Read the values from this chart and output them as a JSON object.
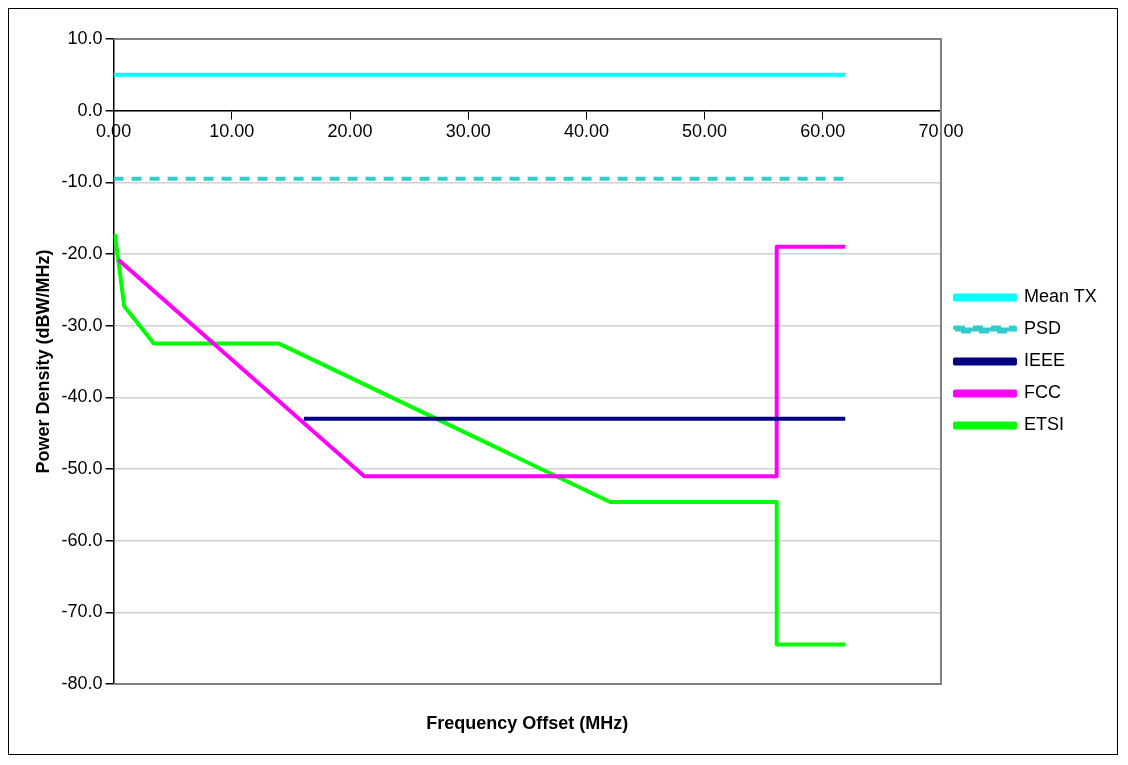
{
  "chart_data": {
    "type": "line",
    "xlabel": "Frequency Offset (MHz)",
    "ylabel": "Power Density (dBW/MHz)",
    "xlim": [
      0,
      70
    ],
    "xticks": [
      {
        "value": 0,
        "label": "0.00"
      },
      {
        "value": 10,
        "label": "10.00"
      },
      {
        "value": 20,
        "label": "20.00"
      },
      {
        "value": 30,
        "label": "30.00"
      },
      {
        "value": 40,
        "label": "40.00"
      },
      {
        "value": 50,
        "label": "50.00"
      },
      {
        "value": 60,
        "label": "60.00"
      },
      {
        "value": 70,
        "label": "70.00"
      }
    ],
    "ylim": [
      -80,
      10
    ],
    "yticks": [
      {
        "value": -80,
        "label": "-80.0"
      },
      {
        "value": -70,
        "label": "-70.0"
      },
      {
        "value": -60,
        "label": "-60.0"
      },
      {
        "value": -50,
        "label": "-50.0"
      },
      {
        "value": -40,
        "label": "-40.0"
      },
      {
        "value": -30,
        "label": "-30.0"
      },
      {
        "value": -20,
        "label": "-20.0"
      },
      {
        "value": -10,
        "label": "-10.0"
      },
      {
        "value": 0,
        "label": "0.0"
      },
      {
        "value": 10,
        "label": "10.0"
      }
    ],
    "grid": "y",
    "legend": "right",
    "marker": "none",
    "series": [
      {
        "name": "Mean TX",
        "color": "#00ffff",
        "x": [
          0,
          61.9
        ],
        "values": [
          5,
          5
        ]
      },
      {
        "name": "PSD",
        "color": "#33cccc",
        "line_style": "dashed",
        "x": [
          0,
          61.9
        ],
        "values": [
          -9.5,
          -9.5
        ]
      },
      {
        "name": "IEEE",
        "color": "#000080",
        "x": [
          16.1,
          61.9
        ],
        "values": [
          -43,
          -43
        ]
      },
      {
        "name": "FCC",
        "color": "#ff00ff",
        "x": [
          0.4,
          21.2,
          56.1,
          56.1,
          61.9
        ],
        "values": [
          -20.8,
          -51,
          -51,
          -19,
          -19
        ]
      },
      {
        "name": "ETSI",
        "color": "#00ff00",
        "x": [
          0.1,
          0.9,
          3.4,
          14,
          42,
          56.1,
          56.1,
          61.9
        ],
        "values": [
          -17.2,
          -27.3,
          -32.5,
          -32.5,
          -54.6,
          -54.6,
          -74.5,
          -74.5
        ]
      }
    ]
  }
}
